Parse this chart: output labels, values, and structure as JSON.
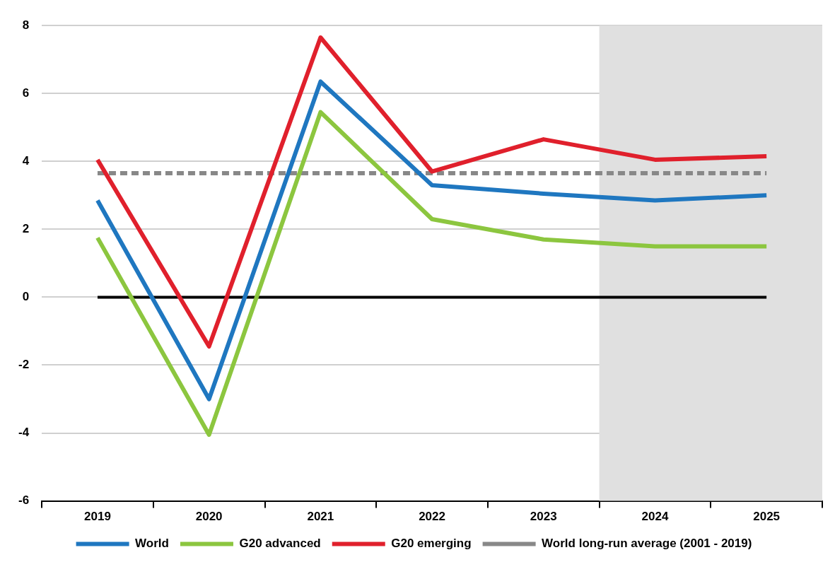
{
  "chart_data": {
    "type": "line",
    "categories": [
      "2019",
      "2020",
      "2021",
      "2022",
      "2023",
      "2024",
      "2025"
    ],
    "series": [
      {
        "name": "World",
        "color": "#1f77c0",
        "values": [
          2.85,
          -3.0,
          6.35,
          3.3,
          3.05,
          2.85,
          3.0
        ]
      },
      {
        "name": "G20 advanced",
        "color": "#8cc63f",
        "values": [
          1.75,
          -4.05,
          5.45,
          2.3,
          1.7,
          1.5,
          1.5
        ]
      },
      {
        "name": "G20 emerging",
        "color": "#e0202c",
        "values": [
          4.05,
          -1.45,
          7.65,
          3.7,
          4.65,
          4.05,
          4.15
        ]
      },
      {
        "name": "World long-run average (2001 - 2019)",
        "color": "#888888",
        "line_style": "dashed",
        "values": [
          3.65,
          3.65,
          3.65,
          3.65,
          3.65,
          3.65,
          3.65
        ]
      }
    ],
    "ylim": [
      -6,
      8
    ],
    "yticks": [
      -6,
      -4,
      -2,
      0,
      2,
      4,
      6,
      8
    ],
    "grid": "y",
    "legend": "bottom",
    "marker": "none",
    "line_style": "solid",
    "ref_lines": [
      {
        "axis": "y",
        "value": 0,
        "color": "#000000"
      }
    ],
    "bands": [
      {
        "axis": "x",
        "from": "2024",
        "to": "2025",
        "color": "#e0e0e0"
      }
    ]
  }
}
